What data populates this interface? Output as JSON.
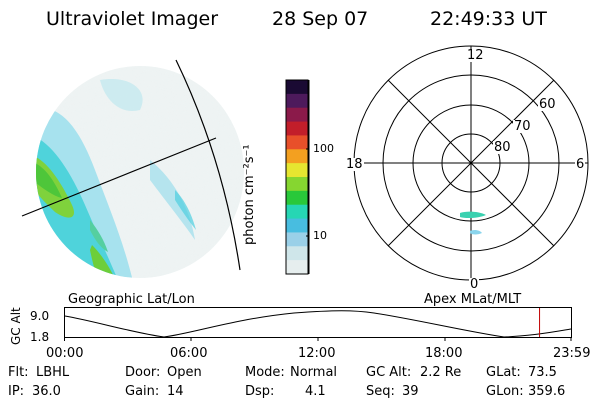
{
  "header": {
    "title": "Ultraviolet Imager",
    "date": "28 Sep 07",
    "time": "22:49:33 UT"
  },
  "colorbar": {
    "unit_label": "photon cm⁻²s⁻¹",
    "ticks": [
      "100",
      "10"
    ],
    "colors": [
      "#1a0a33",
      "#4d1a5c",
      "#8b1a4a",
      "#c21e2a",
      "#e8502a",
      "#f3a020",
      "#e6e630",
      "#86d630",
      "#29c83a",
      "#26d6b4",
      "#48bde0",
      "#9ad0e8",
      "#cfe6ea",
      "#e6eeee"
    ]
  },
  "left_panel": {
    "caption": "Geographic Lat/Lon"
  },
  "polar_panel": {
    "caption": "Apex MLat/MLT",
    "mlt_labels": [
      "12",
      "18",
      "6",
      "0"
    ],
    "lat_labels": [
      "60",
      "70",
      "80"
    ]
  },
  "alt_plot": {
    "ylabel": "GC Alt",
    "yticks": [
      "9.0",
      "1.8"
    ],
    "xticks": [
      "00:00",
      "06:00",
      "12:00",
      "18:00",
      "23:59"
    ],
    "current_time_fraction": 0.937,
    "marker_color": "#c00000"
  },
  "info": {
    "flt_label": "Flt:",
    "flt_value": "LBHL",
    "door_label": "Door:",
    "door_value": "Open",
    "mode_label": "Mode:",
    "mode_value": "Normal",
    "gcalt_label": "GC Alt:",
    "gcalt_value": "2.2 Re",
    "glat_label": "GLat:",
    "glat_value": "73.5",
    "ip_label": "IP:",
    "ip_value": "36.0",
    "gain_label": "Gain:",
    "gain_value": "14",
    "dsp_label": "Dsp:",
    "dsp_value": "4.1",
    "seq_label": "Seq:",
    "seq_value": "39",
    "glon_label": "GLon:",
    "glon_value": "359.6"
  }
}
